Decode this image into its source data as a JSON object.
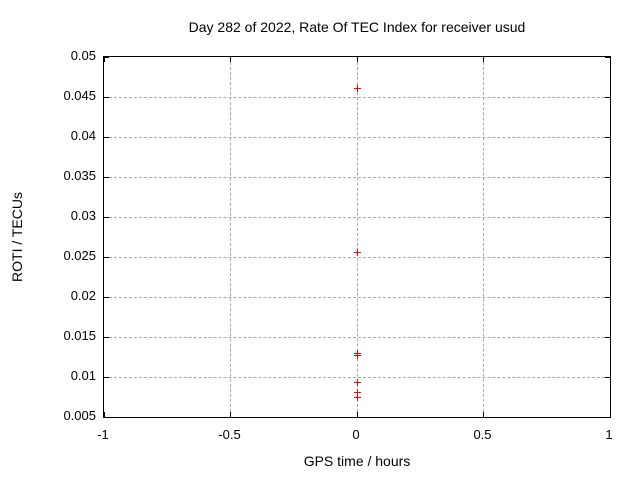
{
  "colors": {
    "background": "#ffffff",
    "axis": "#000000",
    "text": "#000000",
    "grid": "#a8a8a8",
    "marker": "#ff0000"
  },
  "chart_data": {
    "type": "scatter",
    "title": "Day 282 of 2022, Rate Of TEC Index for receiver usud",
    "xlabel": "GPS time / hours",
    "ylabel": "ROTI / TECUs",
    "xlim": [
      -1,
      1
    ],
    "ylim": [
      0.005,
      0.05
    ],
    "xticks": [
      -1,
      -0.5,
      0,
      0.5,
      1
    ],
    "xtick_labels": [
      "-1",
      "-0.5",
      "0",
      "0.5",
      "1"
    ],
    "yticks": [
      0.005,
      0.01,
      0.015,
      0.02,
      0.025,
      0.03,
      0.035,
      0.04,
      0.045,
      0.05
    ],
    "ytick_labels": [
      "0.005",
      "0.01",
      "0.015",
      "0.02",
      "0.025",
      "0.03",
      "0.035",
      "0.04",
      "0.045",
      "0.05"
    ],
    "grid": true,
    "grid_style": "dashed",
    "legend": null,
    "series": [
      {
        "marker": "plus",
        "color": "#ff0000",
        "points": [
          {
            "x": 0,
            "y": 0.0461
          },
          {
            "x": 0,
            "y": 0.0256
          },
          {
            "x": 0,
            "y": 0.0129
          },
          {
            "x": 0,
            "y": 0.0127
          },
          {
            "x": 0,
            "y": 0.0093
          },
          {
            "x": 0,
            "y": 0.0081
          },
          {
            "x": 0,
            "y": 0.0075
          }
        ]
      }
    ]
  }
}
